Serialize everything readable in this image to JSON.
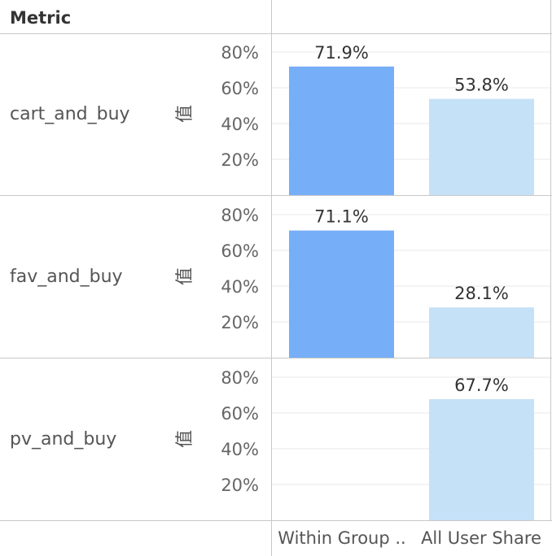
{
  "header": {
    "metric_label": "Metric"
  },
  "y_axis_label": "值",
  "colors": {
    "within_group": "#76aef8",
    "all_user_share": "#c5e1f8",
    "grid": "#e8e8e8",
    "border": "#c8c8c8"
  },
  "chart_data": {
    "type": "bar",
    "categories": [
      "Within Group ..",
      "All User Share"
    ],
    "ylim": [
      0,
      0.9
    ],
    "yticks": [
      "20%",
      "40%",
      "60%",
      "80%"
    ],
    "panels": [
      {
        "metric": "cart_and_buy",
        "values": [
          0.719,
          0.538
        ],
        "labels": [
          "71.9%",
          "53.8%"
        ]
      },
      {
        "metric": "fav_and_buy",
        "values": [
          0.711,
          0.281
        ],
        "labels": [
          "71.1%",
          "28.1%"
        ]
      },
      {
        "metric": "pv_and_buy",
        "values": [
          null,
          0.677
        ],
        "labels": [
          "",
          "67.7%"
        ]
      }
    ],
    "grid": true
  }
}
